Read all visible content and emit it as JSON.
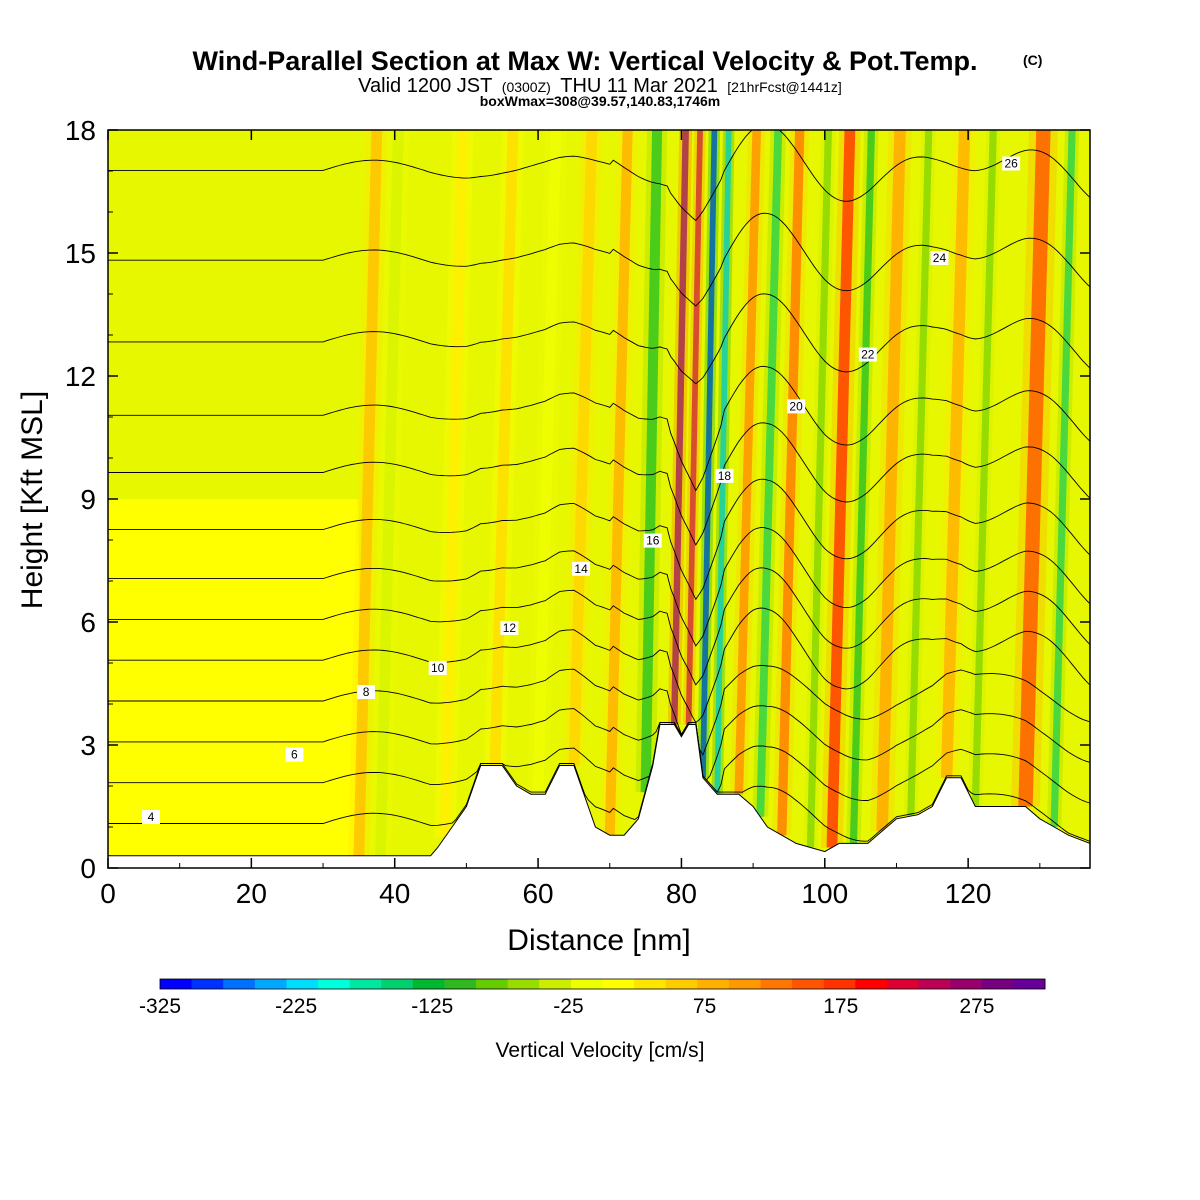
{
  "header": {
    "title": "Wind-Parallel Section at Max W: Vertical Velocity & Pot.Temp.",
    "copyright": "(C)",
    "valid_prefix": "Valid 1200 JST",
    "valid_utc": "(0300Z)",
    "valid_suffix": "THU 11 Mar 2021",
    "forecast_tag": "[21hrFcst@1441z]",
    "boxwmax": "boxWmax=308@39.57,140.83,1746m"
  },
  "chart_data": {
    "type": "heatmap",
    "xlabel": "Distance [nm]",
    "ylabel": "Height [Kft MSL]",
    "xlim": [
      0,
      137
    ],
    "ylim": [
      0,
      18
    ],
    "x_ticks": [
      "0",
      "20",
      "40",
      "60",
      "80",
      "100",
      "120"
    ],
    "y_ticks": [
      "0",
      "3",
      "6",
      "9",
      "12",
      "15",
      "18"
    ],
    "grid": false,
    "terrain_kft": [
      [
        0,
        0.3
      ],
      [
        45,
        0.3
      ],
      [
        46,
        0.5
      ],
      [
        48,
        1.0
      ],
      [
        50,
        1.5
      ],
      [
        52,
        2.5
      ],
      [
        55,
        2.5
      ],
      [
        57,
        2.0
      ],
      [
        59,
        1.8
      ],
      [
        61,
        1.8
      ],
      [
        63,
        2.5
      ],
      [
        65,
        2.5
      ],
      [
        67,
        1.5
      ],
      [
        68,
        1.0
      ],
      [
        70,
        0.8
      ],
      [
        72,
        0.8
      ],
      [
        74,
        1.2
      ],
      [
        76,
        2.5
      ],
      [
        77,
        3.5
      ],
      [
        79,
        3.5
      ],
      [
        80,
        3.2
      ],
      [
        81,
        3.5
      ],
      [
        82,
        3.5
      ],
      [
        83,
        2.2
      ],
      [
        85,
        1.8
      ],
      [
        88,
        1.8
      ],
      [
        90,
        1.5
      ],
      [
        92,
        1.0
      ],
      [
        94,
        0.8
      ],
      [
        96,
        0.6
      ],
      [
        98,
        0.5
      ],
      [
        100,
        0.4
      ],
      [
        102,
        0.6
      ],
      [
        106,
        0.6
      ],
      [
        108,
        0.9
      ],
      [
        110,
        1.2
      ],
      [
        113,
        1.3
      ],
      [
        115,
        1.5
      ],
      [
        117,
        2.2
      ],
      [
        119,
        2.2
      ],
      [
        121,
        1.5
      ],
      [
        126,
        1.5
      ],
      [
        128,
        1.5
      ],
      [
        130,
        1.2
      ],
      [
        132,
        1.0
      ],
      [
        134,
        0.8
      ],
      [
        137,
        0.6
      ]
    ],
    "velocity_bands": [
      {
        "x": 35,
        "w": 1.5,
        "v": 80
      },
      {
        "x": 38,
        "w": 1.5,
        "v": -30
      },
      {
        "x": 47,
        "w": 1.5,
        "v": 40
      },
      {
        "x": 54,
        "w": 1.5,
        "v": 50
      },
      {
        "x": 60,
        "w": 1.5,
        "v": -20
      },
      {
        "x": 65,
        "w": 1.5,
        "v": 60
      },
      {
        "x": 70,
        "w": 1.4,
        "v": 100
      },
      {
        "x": 75,
        "w": 1.4,
        "v": -120
      },
      {
        "x": 79,
        "w": 0.9,
        "v": 300
      },
      {
        "x": 81,
        "w": 0.8,
        "v": 240
      },
      {
        "x": 83,
        "w": 0.8,
        "v": -300
      },
      {
        "x": 85,
        "w": 0.8,
        "v": -230
      },
      {
        "x": 88,
        "w": 1.2,
        "v": 120
      },
      {
        "x": 91,
        "w": 1.1,
        "v": -150
      },
      {
        "x": 94,
        "w": 1.3,
        "v": 140
      },
      {
        "x": 98,
        "w": 1.0,
        "v": -90
      },
      {
        "x": 101,
        "w": 1.5,
        "v": 190
      },
      {
        "x": 104,
        "w": 1.0,
        "v": -120
      },
      {
        "x": 108,
        "w": 1.6,
        "v": 110
      },
      {
        "x": 112,
        "w": 1.0,
        "v": -80
      },
      {
        "x": 117,
        "w": 1.6,
        "v": 100
      },
      {
        "x": 121,
        "w": 1.0,
        "v": -70
      },
      {
        "x": 128,
        "w": 2.0,
        "v": 170
      },
      {
        "x": 132,
        "w": 1.0,
        "v": -140
      }
    ],
    "theta_contours": [
      {
        "base": 1.0,
        "label": "4"
      },
      {
        "base": 2.0,
        "label": ""
      },
      {
        "base": 3.0,
        "label": "6"
      },
      {
        "base": 4.0,
        "label": "8"
      },
      {
        "base": 5.0,
        "label": "10"
      },
      {
        "base": 6.0,
        "label": "12"
      },
      {
        "base": 7.0,
        "label": "14"
      },
      {
        "base": 8.2,
        "label": "16"
      },
      {
        "base": 9.6,
        "label": "18"
      },
      {
        "base": 11.0,
        "label": "20"
      },
      {
        "base": 12.8,
        "label": "22"
      },
      {
        "base": 14.8,
        "label": "24"
      },
      {
        "base": 17.0,
        "label": "26"
      }
    ],
    "colorbar": {
      "label": "Vertical Velocity [cm/s]",
      "min": -325,
      "max": 325,
      "ticks": [
        "-325",
        "-225",
        "-125",
        "-25",
        "75",
        "175",
        "275"
      ],
      "colors": [
        "#0000ff",
        "#0030ff",
        "#0070ff",
        "#00a8ff",
        "#00ddff",
        "#00ffdd",
        "#00e8a0",
        "#00d070",
        "#00b830",
        "#30b820",
        "#66cc00",
        "#99dd00",
        "#ccee00",
        "#eeff00",
        "#ffff00",
        "#ffe600",
        "#ffcc00",
        "#ffb000",
        "#ff9900",
        "#ff7700",
        "#ff5500",
        "#ff3300",
        "#ff0000",
        "#dd0033",
        "#bb0055",
        "#99006b",
        "#770080",
        "#660099"
      ]
    }
  }
}
